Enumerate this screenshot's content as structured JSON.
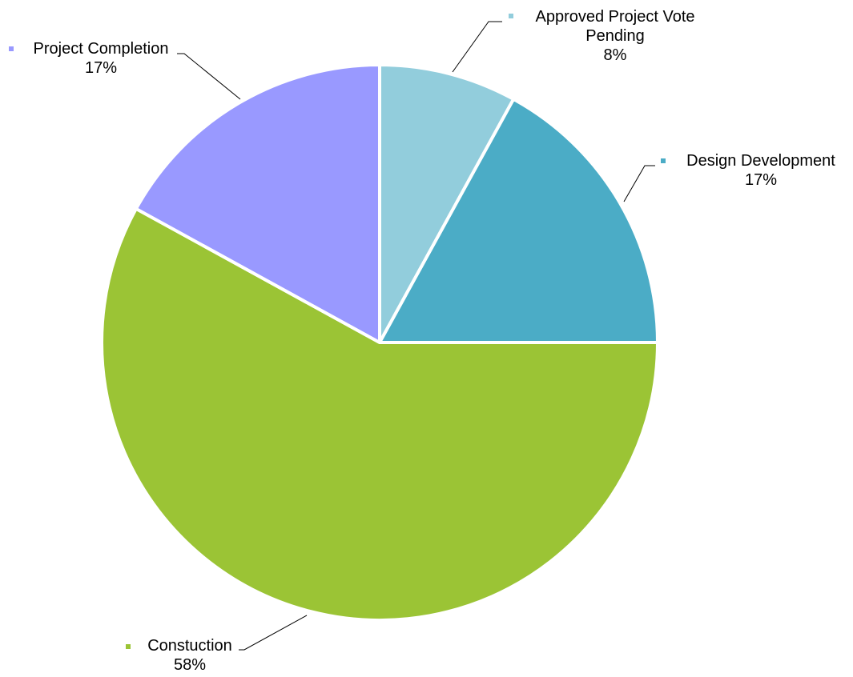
{
  "chart_data": {
    "type": "pie",
    "title": "",
    "slices": [
      {
        "name": "Approved Project Vote Pending",
        "label_lines": [
          "Approved Project Vote",
          "Pending"
        ],
        "value": 8,
        "percent_label": "8%",
        "color": "#92CDDC"
      },
      {
        "name": "Design Development",
        "label_lines": [
          "Design Development"
        ],
        "value": 17,
        "percent_label": "17%",
        "color": "#4BACC6"
      },
      {
        "name": "Constuction",
        "label_lines": [
          "Constuction"
        ],
        "value": 58,
        "percent_label": "58%",
        "color": "#9BC435"
      },
      {
        "name": "Project Completion",
        "label_lines": [
          "Project Completion"
        ],
        "value": 17,
        "percent_label": "17%",
        "color": "#9999FF"
      }
    ],
    "start_angle": "12 o'clock",
    "direction": "clockwise",
    "legend": "none",
    "data_labels": "outside with leader lines"
  }
}
